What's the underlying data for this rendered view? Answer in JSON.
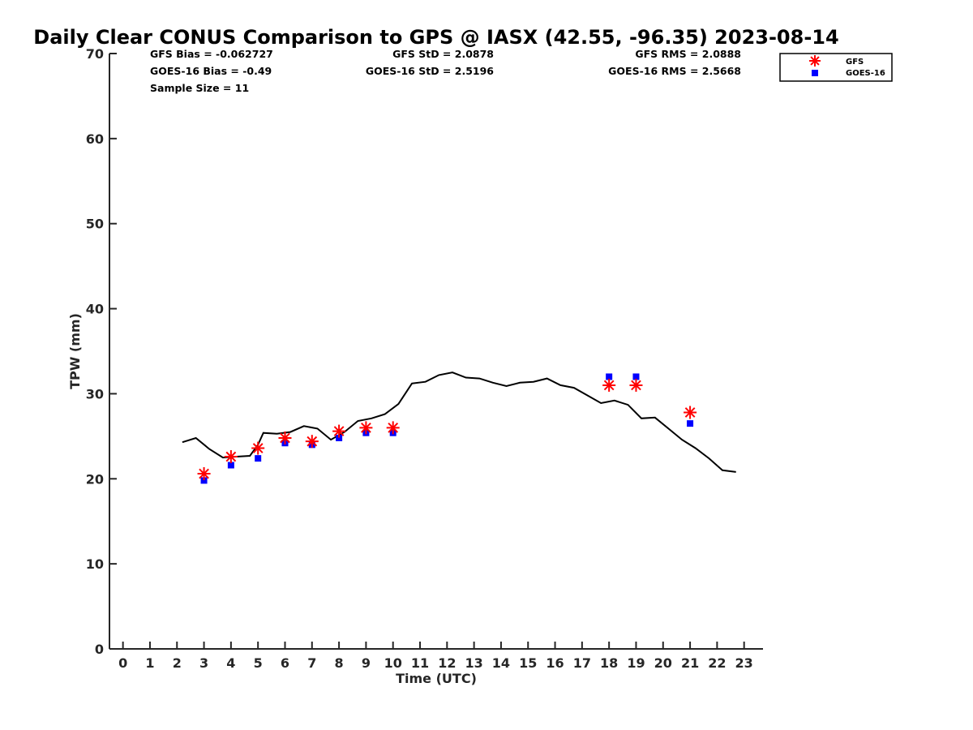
{
  "chart_data": {
    "type": "scatter",
    "title": "Daily Clear CONUS Comparison to GPS @ IASX (42.55, -96.35) 2023-08-14",
    "xlabel": "Time (UTC)",
    "ylabel": "TPW (mm)",
    "xlim": [
      -0.5,
      23.7
    ],
    "ylim": [
      0,
      70
    ],
    "xticks": [
      "0",
      "1",
      "2",
      "3",
      "4",
      "5",
      "6",
      "7",
      "8",
      "9",
      "10",
      "11",
      "12",
      "13",
      "14",
      "15",
      "16",
      "17",
      "18",
      "19",
      "20",
      "21",
      "22",
      "23"
    ],
    "yticks": [
      "0",
      "10",
      "20",
      "30",
      "40",
      "50",
      "60",
      "70"
    ],
    "stats": {
      "gfs_bias": "GFS Bias = -0.062727",
      "goes_bias": "GOES-16 Bias = -0.49",
      "sample_size": "Sample Size = 11",
      "gfs_std": "GFS StD = 2.0878",
      "goes_std": "GOES-16 StD = 2.5196",
      "gfs_rms": "GFS RMS = 2.0888",
      "goes_rms": "GOES-16 RMS = 2.5668"
    },
    "legend": {
      "position": "top-right",
      "entries": [
        "GFS",
        "GOES-16"
      ]
    },
    "colors": {
      "gps": "#000000",
      "gfs": "#ff0000",
      "goes": "#0000ff",
      "axis": "#262626"
    },
    "series": [
      {
        "name": "GPS",
        "style": "line",
        "x": [
          2.2,
          2.7,
          3.2,
          3.7,
          4.2,
          4.7,
          5.0,
          5.2,
          5.7,
          6.2,
          6.7,
          7.2,
          7.7,
          8.2,
          8.7,
          9.2,
          9.7,
          10.2,
          10.7,
          11.2,
          11.7,
          12.2,
          12.7,
          13.2,
          13.7,
          14.2,
          14.7,
          15.2,
          15.7,
          16.2,
          16.7,
          17.2,
          17.7,
          18.2,
          18.7,
          19.2,
          19.7,
          20.2,
          20.7,
          21.2,
          21.7,
          22.2,
          22.7
        ],
        "y": [
          24.3,
          24.8,
          23.5,
          22.5,
          22.6,
          22.7,
          24.0,
          25.4,
          25.3,
          25.5,
          26.2,
          25.9,
          24.6,
          25.5,
          26.8,
          27.1,
          27.6,
          28.8,
          31.2,
          31.4,
          32.2,
          32.5,
          31.9,
          31.8,
          31.3,
          30.9,
          31.3,
          31.4,
          31.8,
          31.0,
          30.7,
          29.8,
          28.9,
          29.2,
          28.7,
          27.1,
          27.2,
          25.9,
          24.6,
          23.6,
          22.4,
          21.0,
          20.8
        ]
      },
      {
        "name": "GFS",
        "style": "asterisk",
        "x": [
          3,
          4,
          5,
          6,
          7,
          8,
          9,
          10,
          18,
          19,
          21
        ],
        "y": [
          20.6,
          22.6,
          23.6,
          24.8,
          24.4,
          25.6,
          26.0,
          26.0,
          31.0,
          31.0,
          27.8
        ]
      },
      {
        "name": "GOES-16",
        "style": "square",
        "x": [
          3,
          4,
          5,
          6,
          7,
          8,
          9,
          10,
          18,
          19,
          21
        ],
        "y": [
          19.8,
          21.6,
          22.4,
          24.2,
          24.0,
          24.8,
          25.4,
          25.4,
          32.0,
          32.0,
          26.5
        ]
      }
    ]
  }
}
